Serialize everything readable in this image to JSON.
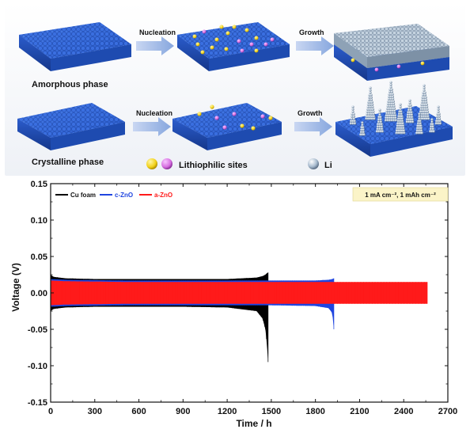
{
  "schematic": {
    "rows": [
      {
        "phase_label": "Amorphous phase",
        "step1_label": "Nucleation",
        "step2_label": "Growth"
      },
      {
        "phase_label": "Crystalline phase",
        "step1_label": "Nucleation",
        "step2_label": "Growth"
      }
    ],
    "legend": {
      "sites_label": "Lithiophilic sites",
      "li_label": "Li"
    },
    "colors": {
      "substrate": "#2f63d3",
      "site_yellow": "#f2d21a",
      "site_pink": "#d66ee0",
      "li": "#a9bccf"
    }
  },
  "chart_data": {
    "type": "area",
    "xlabel": "Time / h",
    "ylabel": "Voltage (V)",
    "xlim": [
      0,
      2700
    ],
    "ylim": [
      -0.15,
      0.15
    ],
    "x_ticks": [
      "0",
      "300",
      "600",
      "900",
      "1200",
      "1500",
      "1800",
      "2100",
      "2400",
      "2700"
    ],
    "y_ticks": [
      "0.15",
      "0.10",
      "0.05",
      "0.00",
      "-0.05",
      "-0.10",
      "-0.15"
    ],
    "x_tick_values": [
      0,
      300,
      600,
      900,
      1200,
      1500,
      1800,
      2100,
      2400,
      2700
    ],
    "y_tick_values": [
      0.15,
      0.1,
      0.05,
      0.0,
      -0.05,
      -0.1,
      -0.15
    ],
    "annotation": "1 mA cm⁻², 1 mAh cm⁻²",
    "legend_position": "top-left",
    "series": [
      {
        "name": "Cu foam",
        "color": "#000000",
        "x": [
          0,
          20,
          100,
          300,
          600,
          900,
          1200,
          1400,
          1440,
          1460,
          1470,
          1478
        ],
        "upper": [
          0.025,
          0.022,
          0.02,
          0.019,
          0.019,
          0.019,
          0.019,
          0.021,
          0.023,
          0.025,
          0.027,
          0.028
        ],
        "lower": [
          -0.025,
          -0.022,
          -0.02,
          -0.019,
          -0.019,
          -0.019,
          -0.02,
          -0.025,
          -0.035,
          -0.05,
          -0.07,
          -0.095
        ]
      },
      {
        "name": "c-ZnO",
        "color": "#1f45e0",
        "x": [
          0,
          100,
          500,
          1000,
          1500,
          1800,
          1890,
          1915,
          1925
        ],
        "upper": [
          0.019,
          0.018,
          0.017,
          0.017,
          0.017,
          0.017,
          0.018,
          0.019,
          0.02
        ],
        "lower": [
          -0.019,
          -0.018,
          -0.017,
          -0.017,
          -0.017,
          -0.018,
          -0.021,
          -0.028,
          -0.05
        ]
      },
      {
        "name": "a-ZnO",
        "color": "#ff1a1a",
        "x": [
          0,
          100,
          500,
          1000,
          1500,
          2000,
          2300,
          2560
        ],
        "upper": [
          0.017,
          0.016,
          0.015,
          0.015,
          0.015,
          0.015,
          0.015,
          0.015
        ],
        "lower": [
          -0.017,
          -0.016,
          -0.015,
          -0.015,
          -0.015,
          -0.015,
          -0.015,
          -0.015
        ]
      }
    ]
  }
}
